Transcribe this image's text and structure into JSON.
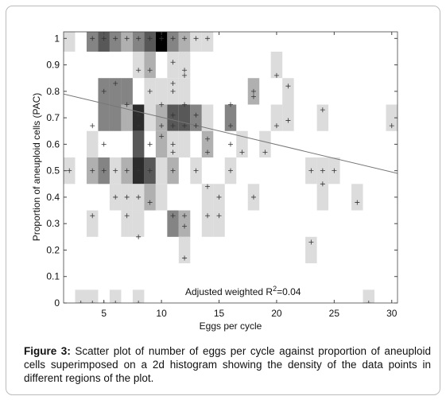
{
  "chart_data": {
    "type": "scatter",
    "xlabel": "Eggs per cycle",
    "ylabel": "Proportion of aneuploid cells (PAC)",
    "xlim": [
      1.5,
      30.5
    ],
    "ylim": [
      0,
      1.025
    ],
    "xticks": [
      5,
      10,
      15,
      20,
      25,
      30
    ],
    "yticks": [
      0,
      0.1,
      0.2,
      0.3,
      0.4,
      0.5,
      0.6,
      0.7,
      0.8,
      0.9,
      1
    ],
    "annotation": {
      "text": "Adjusted weighted R",
      "sup": "2",
      "after": "=0.04"
    },
    "color": "#333333",
    "trend_color": "#777777",
    "trend": {
      "x": [
        1.5,
        30.5
      ],
      "y": [
        0.79,
        0.49
      ]
    },
    "cells": [
      {
        "x": 2,
        "y": 1,
        "count": 1
      },
      {
        "x": 4,
        "y": 1,
        "count": 3
      },
      {
        "x": 5,
        "y": 1,
        "count": 4
      },
      {
        "x": 6,
        "y": 1,
        "count": 3
      },
      {
        "x": 7,
        "y": 1,
        "count": 2
      },
      {
        "x": 8,
        "y": 1,
        "count": 3
      },
      {
        "x": 9,
        "y": 1,
        "count": 4
      },
      {
        "x": 10,
        "y": 1,
        "count": 6
      },
      {
        "x": 11,
        "y": 1,
        "count": 3
      },
      {
        "x": 12,
        "y": 1,
        "count": 2
      },
      {
        "x": 13,
        "y": 1,
        "count": 1
      },
      {
        "x": 14,
        "y": 1,
        "count": 1
      },
      {
        "x": 8,
        "y": 0.9,
        "count": 1
      },
      {
        "x": 9,
        "y": 0.9,
        "count": 2
      },
      {
        "x": 11,
        "y": 0.9,
        "count": 1
      },
      {
        "x": 12,
        "y": 0.9,
        "count": 1
      },
      {
        "x": 20,
        "y": 0.9,
        "count": 1
      },
      {
        "x": 5,
        "y": 0.8,
        "count": 3
      },
      {
        "x": 6,
        "y": 0.8,
        "count": 3
      },
      {
        "x": 7,
        "y": 0.8,
        "count": 3
      },
      {
        "x": 9,
        "y": 0.8,
        "count": 1
      },
      {
        "x": 10,
        "y": 0.8,
        "count": 1
      },
      {
        "x": 11,
        "y": 0.8,
        "count": 1
      },
      {
        "x": 12,
        "y": 0.8,
        "count": 1
      },
      {
        "x": 18,
        "y": 0.8,
        "count": 2
      },
      {
        "x": 21,
        "y": 0.8,
        "count": 1
      },
      {
        "x": 5,
        "y": 0.7,
        "count": 3
      },
      {
        "x": 6,
        "y": 0.7,
        "count": 3
      },
      {
        "x": 7,
        "y": 0.7,
        "count": 2
      },
      {
        "x": 8,
        "y": 0.7,
        "count": 5
      },
      {
        "x": 9,
        "y": 0.7,
        "count": 1
      },
      {
        "x": 10,
        "y": 0.7,
        "count": 2
      },
      {
        "x": 11,
        "y": 0.7,
        "count": 4
      },
      {
        "x": 12,
        "y": 0.7,
        "count": 4
      },
      {
        "x": 13,
        "y": 0.7,
        "count": 3
      },
      {
        "x": 14,
        "y": 0.7,
        "count": 1
      },
      {
        "x": 16,
        "y": 0.7,
        "count": 3
      },
      {
        "x": 20,
        "y": 0.7,
        "count": 1
      },
      {
        "x": 21,
        "y": 0.7,
        "count": 1
      },
      {
        "x": 24,
        "y": 0.7,
        "count": 1
      },
      {
        "x": 30,
        "y": 0.7,
        "count": 1
      },
      {
        "x": 4,
        "y": 0.6,
        "count": 1
      },
      {
        "x": 8,
        "y": 0.6,
        "count": 4
      },
      {
        "x": 10,
        "y": 0.6,
        "count": 2
      },
      {
        "x": 11,
        "y": 0.6,
        "count": 1
      },
      {
        "x": 12,
        "y": 0.6,
        "count": 1
      },
      {
        "x": 14,
        "y": 0.6,
        "count": 2
      },
      {
        "x": 17,
        "y": 0.6,
        "count": 1
      },
      {
        "x": 19,
        "y": 0.6,
        "count": 1
      },
      {
        "x": 2,
        "y": 0.5,
        "count": 1
      },
      {
        "x": 4,
        "y": 0.5,
        "count": 2
      },
      {
        "x": 5,
        "y": 0.5,
        "count": 3
      },
      {
        "x": 6,
        "y": 0.5,
        "count": 1
      },
      {
        "x": 7,
        "y": 0.5,
        "count": 2
      },
      {
        "x": 8,
        "y": 0.5,
        "count": 5
      },
      {
        "x": 9,
        "y": 0.5,
        "count": 4
      },
      {
        "x": 10,
        "y": 0.5,
        "count": 1
      },
      {
        "x": 11,
        "y": 0.5,
        "count": 2
      },
      {
        "x": 13,
        "y": 0.5,
        "count": 1
      },
      {
        "x": 16,
        "y": 0.5,
        "count": 1
      },
      {
        "x": 23,
        "y": 0.5,
        "count": 1
      },
      {
        "x": 24,
        "y": 0.5,
        "count": 1
      },
      {
        "x": 25,
        "y": 0.5,
        "count": 1
      },
      {
        "x": 6,
        "y": 0.4,
        "count": 1
      },
      {
        "x": 7,
        "y": 0.4,
        "count": 1
      },
      {
        "x": 8,
        "y": 0.4,
        "count": 1
      },
      {
        "x": 9,
        "y": 0.4,
        "count": 2
      },
      {
        "x": 10,
        "y": 0.4,
        "count": 1
      },
      {
        "x": 14,
        "y": 0.4,
        "count": 1
      },
      {
        "x": 15,
        "y": 0.4,
        "count": 1
      },
      {
        "x": 18,
        "y": 0.4,
        "count": 1
      },
      {
        "x": 24,
        "y": 0.4,
        "count": 1
      },
      {
        "x": 27,
        "y": 0.4,
        "count": 1
      },
      {
        "x": 4,
        "y": 0.3,
        "count": 1
      },
      {
        "x": 7,
        "y": 0.3,
        "count": 1
      },
      {
        "x": 8,
        "y": 0.3,
        "count": 1
      },
      {
        "x": 11,
        "y": 0.3,
        "count": 3
      },
      {
        "x": 12,
        "y": 0.3,
        "count": 2
      },
      {
        "x": 14,
        "y": 0.3,
        "count": 1
      },
      {
        "x": 15,
        "y": 0.3,
        "count": 1
      },
      {
        "x": 12,
        "y": 0.2,
        "count": 1
      },
      {
        "x": 23,
        "y": 0.2,
        "count": 1
      },
      {
        "x": 3,
        "y": 0,
        "count": 1
      },
      {
        "x": 4,
        "y": 0,
        "count": 1
      },
      {
        "x": 6,
        "y": 0,
        "count": 1
      },
      {
        "x": 8,
        "y": 0,
        "count": 1
      },
      {
        "x": 28,
        "y": 0,
        "count": 1
      }
    ],
    "points": {
      "x": [
        3,
        4,
        5,
        6,
        8,
        28,
        4,
        4,
        5,
        6,
        7,
        8,
        9,
        11,
        13,
        16,
        23,
        24,
        25,
        2,
        6,
        7,
        8,
        9,
        14,
        14,
        15,
        15,
        18,
        24,
        27,
        7,
        8,
        11,
        12,
        12,
        12,
        23,
        4,
        5,
        8,
        8,
        9,
        10,
        10,
        11,
        11,
        12,
        12,
        13,
        13,
        14,
        14,
        16,
        16,
        17,
        19,
        20,
        21,
        24,
        30,
        5,
        6,
        7,
        9,
        10,
        11,
        11,
        12,
        18,
        18,
        20,
        21,
        8,
        9,
        12,
        11,
        4,
        5,
        6,
        7,
        8,
        9,
        10,
        11,
        12,
        13,
        14,
        16,
        11,
        11
      ],
      "y": [
        0,
        0,
        0,
        0,
        0,
        0,
        0.33,
        0.5,
        0.5,
        0.5,
        0.5,
        0.5,
        0.5,
        0.5,
        0.5,
        0.5,
        0.5,
        0.5,
        0.5,
        0.5,
        0.4,
        0.4,
        0.4,
        0.38,
        0.44,
        0.33,
        0.4,
        0.33,
        0.4,
        0.45,
        0.38,
        0.33,
        0.25,
        0.33,
        0.33,
        0.29,
        0.17,
        0.23,
        0.67,
        0.6,
        0.67,
        0.71,
        0.6,
        0.67,
        0.63,
        0.57,
        0.71,
        0.67,
        0.75,
        0.67,
        0.71,
        0.62,
        0.57,
        0.67,
        0.75,
        0.57,
        0.57,
        0.67,
        0.69,
        0.73,
        0.67,
        0.8,
        0.83,
        0.75,
        0.8,
        0.75,
        0.8,
        0.83,
        0.86,
        0.8,
        0.78,
        0.86,
        0.82,
        0.88,
        0.88,
        0.88,
        0.91,
        1,
        1,
        1,
        1,
        1,
        1,
        1,
        1,
        1,
        1,
        1,
        0.6,
        0.6,
        0.67
      ]
    }
  },
  "caption": {
    "label": "Figure 3:",
    "text": " Scatter plot of number of eggs per cycle against proportion of aneuploid cells superimposed on a 2d histogram showing the density of the data points in different regions of the plot."
  }
}
